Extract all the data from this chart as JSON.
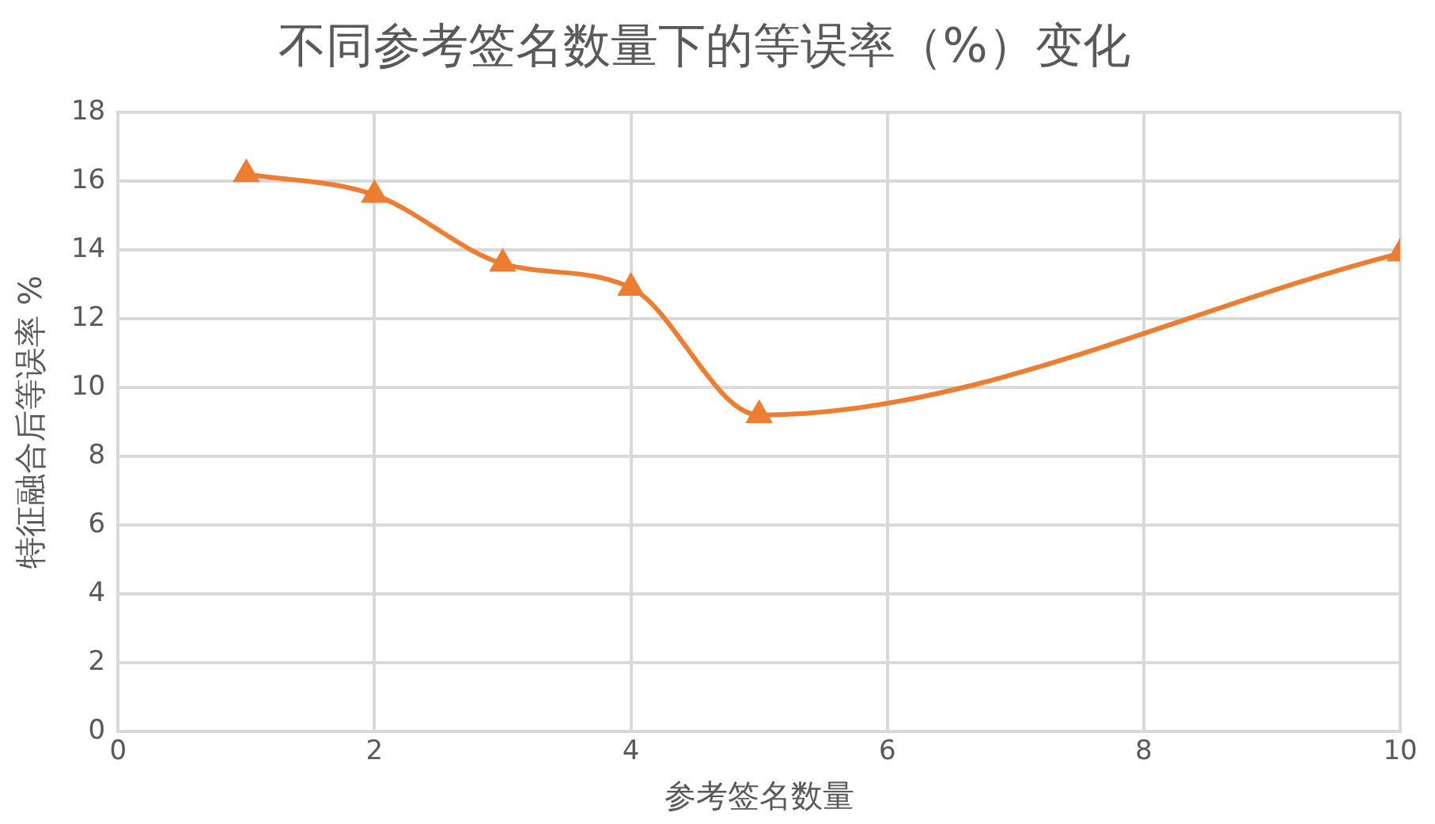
{
  "chart_data": {
    "type": "line",
    "title": "不同参考签名数量下的等误率（%）变化",
    "xlabel": "参考签名数量",
    "ylabel": "特征融合后等误率 %",
    "x": [
      1,
      2,
      3,
      4,
      5,
      10
    ],
    "series": [
      {
        "color": "#ed7d31",
        "values": [
          16.2,
          15.6,
          13.6,
          12.9,
          9.2,
          13.9
        ]
      }
    ],
    "xlim": [
      0,
      10
    ],
    "xticks": [
      0,
      2,
      4,
      6,
      8,
      10
    ],
    "ylim": [
      0,
      18
    ],
    "yticks": [
      0,
      2,
      4,
      6,
      8,
      10,
      12,
      14,
      16,
      18
    ],
    "grid": true,
    "legend": false,
    "marker": "triangle",
    "line_style": "solid"
  }
}
